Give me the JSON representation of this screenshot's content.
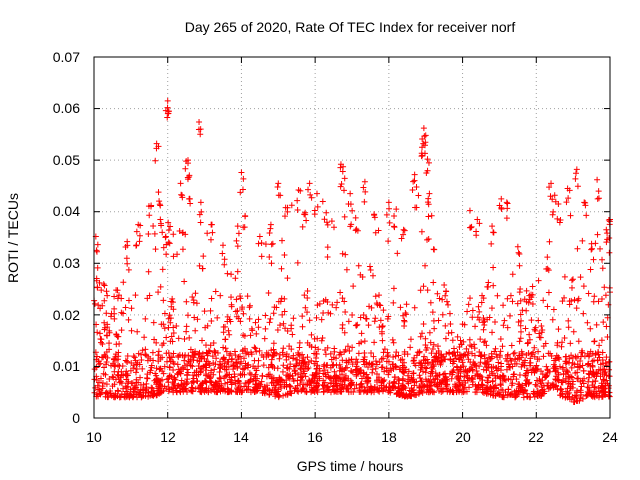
{
  "chart_data": {
    "type": "scatter",
    "title": "Day 265 of 2020, Rate Of TEC Index for receiver norf",
    "xlabel": "GPS time / hours",
    "ylabel": "ROTI / TECUs",
    "xlim": [
      10,
      24
    ],
    "ylim": [
      0,
      0.07
    ],
    "x_ticks": [
      10,
      12,
      14,
      16,
      18,
      20,
      22,
      24
    ],
    "y_ticks": [
      0,
      0.01,
      0.02,
      0.03,
      0.04,
      0.05,
      0.06,
      0.07
    ],
    "x_tick_labels": [
      "10",
      "12",
      "14",
      "16",
      "18",
      "20",
      "22",
      "24"
    ],
    "y_tick_labels": [
      "0",
      "0.01",
      "0.02",
      "0.03",
      "0.04",
      "0.05",
      "0.06",
      "0.07"
    ],
    "grid": true,
    "marker": "plus",
    "color": "#ff0000",
    "series": [
      {
        "name": "ROTI",
        "points": [
          [
            10.05,
            0.0352
          ],
          [
            10.1,
            0.0291
          ],
          [
            10.15,
            0.0262
          ],
          [
            10.3,
            0.0175
          ],
          [
            10.6,
            0.0248
          ],
          [
            10.9,
            0.0342
          ],
          [
            11.2,
            0.0375
          ],
          [
            11.55,
            0.0412
          ],
          [
            11.7,
            0.0532
          ],
          [
            11.75,
            0.0438
          ],
          [
            11.8,
            0.0385
          ],
          [
            11.95,
            0.0352
          ],
          [
            12.0,
            0.0615
          ],
          [
            12.03,
            0.0595
          ],
          [
            12.35,
            0.0455
          ],
          [
            12.5,
            0.0498
          ],
          [
            12.55,
            0.05
          ],
          [
            12.6,
            0.0425
          ],
          [
            12.85,
            0.0574
          ],
          [
            12.9,
            0.0418
          ],
          [
            13.2,
            0.0375
          ],
          [
            13.5,
            0.0335
          ],
          [
            13.9,
            0.0372
          ],
          [
            14.0,
            0.0476
          ],
          [
            14.1,
            0.0392
          ],
          [
            14.5,
            0.0352
          ],
          [
            14.8,
            0.0375
          ],
          [
            15.0,
            0.0455
          ],
          [
            15.2,
            0.0408
          ],
          [
            15.55,
            0.0442
          ],
          [
            15.7,
            0.0395
          ],
          [
            15.85,
            0.0455
          ],
          [
            16.05,
            0.0435
          ],
          [
            16.3,
            0.0398
          ],
          [
            16.7,
            0.0492
          ],
          [
            16.75,
            0.0478
          ],
          [
            16.95,
            0.0435
          ],
          [
            17.1,
            0.0388
          ],
          [
            17.35,
            0.0458
          ],
          [
            17.6,
            0.0395
          ],
          [
            18.0,
            0.0418
          ],
          [
            18.2,
            0.0405
          ],
          [
            18.4,
            0.0365
          ],
          [
            18.7,
            0.0472
          ],
          [
            18.75,
            0.0448
          ],
          [
            18.9,
            0.0525
          ],
          [
            18.95,
            0.0562
          ],
          [
            19.0,
            0.0548
          ],
          [
            19.05,
            0.0502
          ],
          [
            19.1,
            0.0435
          ],
          [
            19.5,
            0.0258
          ],
          [
            20.0,
            0.0182
          ],
          [
            20.2,
            0.0402
          ],
          [
            20.4,
            0.0385
          ],
          [
            20.8,
            0.0372
          ],
          [
            21.05,
            0.0425
          ],
          [
            21.2,
            0.0418
          ],
          [
            21.5,
            0.0332
          ],
          [
            21.9,
            0.0255
          ],
          [
            22.3,
            0.0312
          ],
          [
            22.4,
            0.0455
          ],
          [
            22.5,
            0.0432
          ],
          [
            22.6,
            0.0415
          ],
          [
            22.85,
            0.0445
          ],
          [
            23.1,
            0.0482
          ],
          [
            23.3,
            0.0418
          ],
          [
            23.5,
            0.0338
          ],
          [
            23.65,
            0.0462
          ],
          [
            23.9,
            0.0365
          ],
          [
            24.0,
            0.0385
          ]
        ],
        "baseline_density_note": "plus-markers densely cover 0.004-0.02 across the whole 10-24 h range"
      }
    ],
    "envelope": {
      "x": [
        10,
        10.5,
        11,
        11.5,
        12,
        12.5,
        13,
        13.5,
        14,
        14.5,
        15,
        15.5,
        16,
        16.5,
        17,
        17.5,
        18,
        18.5,
        19,
        19.5,
        20,
        20.5,
        21,
        21.5,
        22,
        22.5,
        23,
        23.5,
        24
      ],
      "upper": [
        0.029,
        0.024,
        0.034,
        0.038,
        0.044,
        0.042,
        0.04,
        0.03,
        0.036,
        0.032,
        0.04,
        0.042,
        0.04,
        0.045,
        0.042,
        0.038,
        0.04,
        0.036,
        0.048,
        0.024,
        0.016,
        0.036,
        0.04,
        0.03,
        0.025,
        0.042,
        0.04,
        0.035,
        0.037
      ],
      "lower": [
        0.004,
        0.004,
        0.004,
        0.004,
        0.005,
        0.005,
        0.005,
        0.005,
        0.005,
        0.005,
        0.004,
        0.005,
        0.005,
        0.005,
        0.005,
        0.005,
        0.005,
        0.004,
        0.005,
        0.005,
        0.005,
        0.005,
        0.004,
        0.004,
        0.004,
        0.005,
        0.003,
        0.004,
        0.004
      ]
    }
  }
}
